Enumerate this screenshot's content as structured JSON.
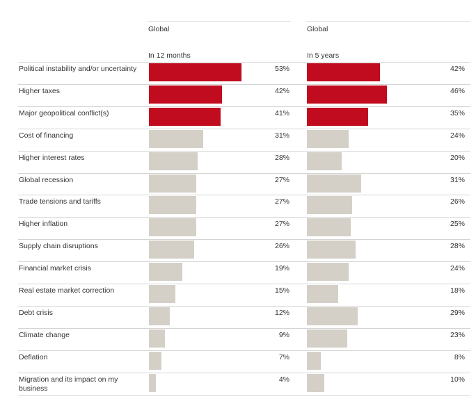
{
  "chart_data": {
    "type": "bar",
    "orientation": "horizontal",
    "groups": [
      {
        "region": "Global",
        "period": "In 12 months"
      },
      {
        "region": "Global",
        "period": "In 5 years"
      }
    ],
    "categories": [
      "Political instability and/or uncertainty",
      "Higher taxes",
      "Major geopolitical conflict(s)",
      "Cost of financing",
      "Higher interest rates",
      "Global recession",
      "Trade tensions and tariffs",
      "Higher inflation",
      "Supply chain disruptions",
      "Financial market crisis",
      "Real estate market correction",
      "Debt crisis",
      "Climate change",
      "Deflation",
      "Migration and its impact on my business"
    ],
    "series": [
      {
        "values": [
          53,
          42,
          41,
          31,
          28,
          27,
          27,
          27,
          26,
          19,
          15,
          12,
          9,
          7,
          4
        ]
      },
      {
        "values": [
          42,
          46,
          35,
          24,
          20,
          31,
          26,
          25,
          28,
          24,
          18,
          29,
          23,
          8,
          10
        ]
      }
    ],
    "value_suffix": "%",
    "highlight_top_n": 3,
    "colors": {
      "highlight": "#c00c1e",
      "default": "#d4d0c8"
    },
    "grid": false
  }
}
